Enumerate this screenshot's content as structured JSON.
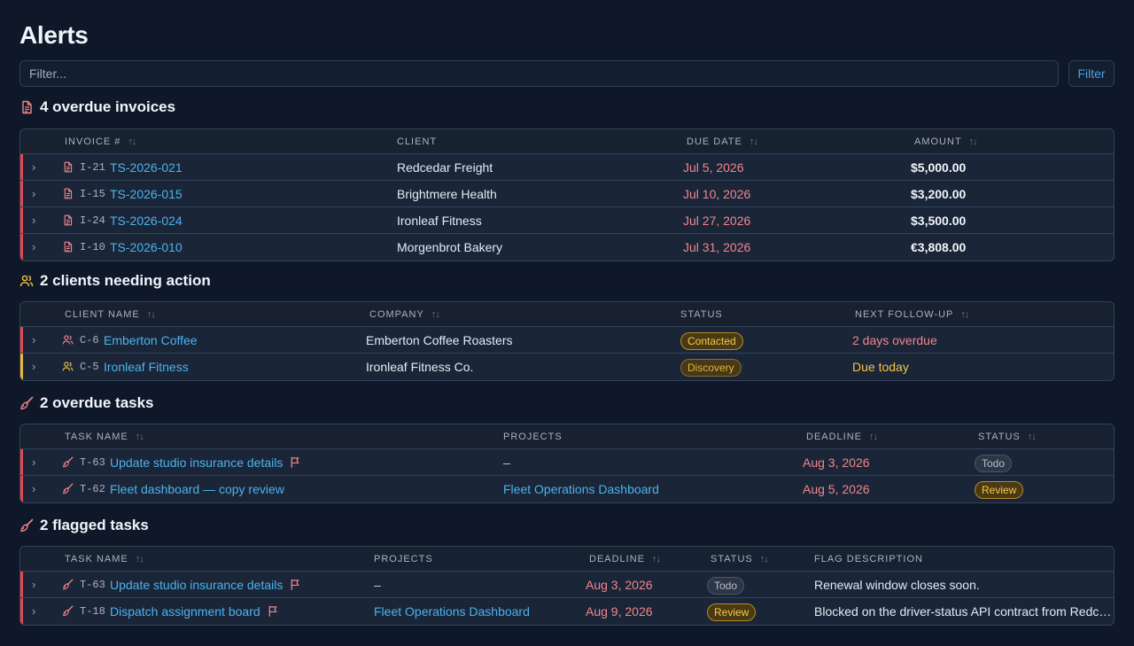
{
  "page": {
    "title": "Alerts"
  },
  "filter": {
    "placeholder": "Filter...",
    "button_label": "Filter"
  },
  "colors": {
    "accent_link": "#4cb3ec",
    "overdue_red": "#e2474f",
    "warning_yellow": "#e6b73a",
    "background": "#0f1829"
  },
  "sections": {
    "invoices": {
      "title": "4 overdue invoices",
      "icon": "invoice-icon",
      "headers": {
        "invoice": "INVOICE #",
        "client": "CLIENT",
        "due_date": "DUE DATE",
        "amount": "AMOUNT"
      },
      "rows": [
        {
          "code": "I-21",
          "number": "TS-2026-021",
          "client": "Redcedar Freight",
          "due": "Jul 5, 2026",
          "amount": "$5,000.00"
        },
        {
          "code": "I-15",
          "number": "TS-2026-015",
          "client": "Brightmere Health",
          "due": "Jul 10, 2026",
          "amount": "$3,200.00"
        },
        {
          "code": "I-24",
          "number": "TS-2026-024",
          "client": "Ironleaf Fitness",
          "due": "Jul 27, 2026",
          "amount": "$3,500.00"
        },
        {
          "code": "I-10",
          "number": "TS-2026-010",
          "client": "Morgenbrot Bakery",
          "due": "Jul 31, 2026",
          "amount": "€3,808.00"
        }
      ]
    },
    "clients": {
      "title": "2 clients needing action",
      "icon": "users-icon",
      "headers": {
        "name": "CLIENT NAME",
        "company": "COMPANY",
        "status": "STATUS",
        "followup": "NEXT FOLLOW-UP"
      },
      "rows": [
        {
          "code": "C-6",
          "name": "Emberton Coffee",
          "company": "Emberton Coffee Roasters",
          "status": "Contacted",
          "followup": "2 days overdue"
        },
        {
          "code": "C-5",
          "name": "Ironleaf Fitness",
          "company": "Ironleaf Fitness Co.",
          "status": "Discovery",
          "followup": "Due today"
        }
      ]
    },
    "overdue_tasks": {
      "title": "2 overdue tasks",
      "icon": "brush-icon",
      "headers": {
        "name": "TASK NAME",
        "projects": "PROJECTS",
        "deadline": "DEADLINE",
        "status": "STATUS"
      },
      "rows": [
        {
          "code": "T-63",
          "name": "Update studio insurance details",
          "projects": "–",
          "deadline": "Aug 3, 2026",
          "status": "Todo"
        },
        {
          "code": "T-62",
          "name": "Fleet dashboard — copy review",
          "projects": "Fleet Operations Dashboard",
          "deadline": "Aug 5, 2026",
          "status": "Review"
        }
      ]
    },
    "flagged_tasks": {
      "title": "2 flagged tasks",
      "icon": "brush-icon",
      "headers": {
        "name": "TASK NAME",
        "projects": "PROJECTS",
        "deadline": "DEADLINE",
        "status": "STATUS",
        "flag": "FLAG DESCRIPTION"
      },
      "rows": [
        {
          "code": "T-63",
          "name": "Update studio insurance details",
          "projects": "–",
          "deadline": "Aug 3, 2026",
          "status": "Todo",
          "flag": "Renewal window closes soon."
        },
        {
          "code": "T-18",
          "name": "Dispatch assignment board",
          "projects": "Fleet Operations Dashboard",
          "deadline": "Aug 9, 2026",
          "status": "Review",
          "flag": "Blocked on the driver-status API contract from Redc…"
        }
      ]
    }
  }
}
